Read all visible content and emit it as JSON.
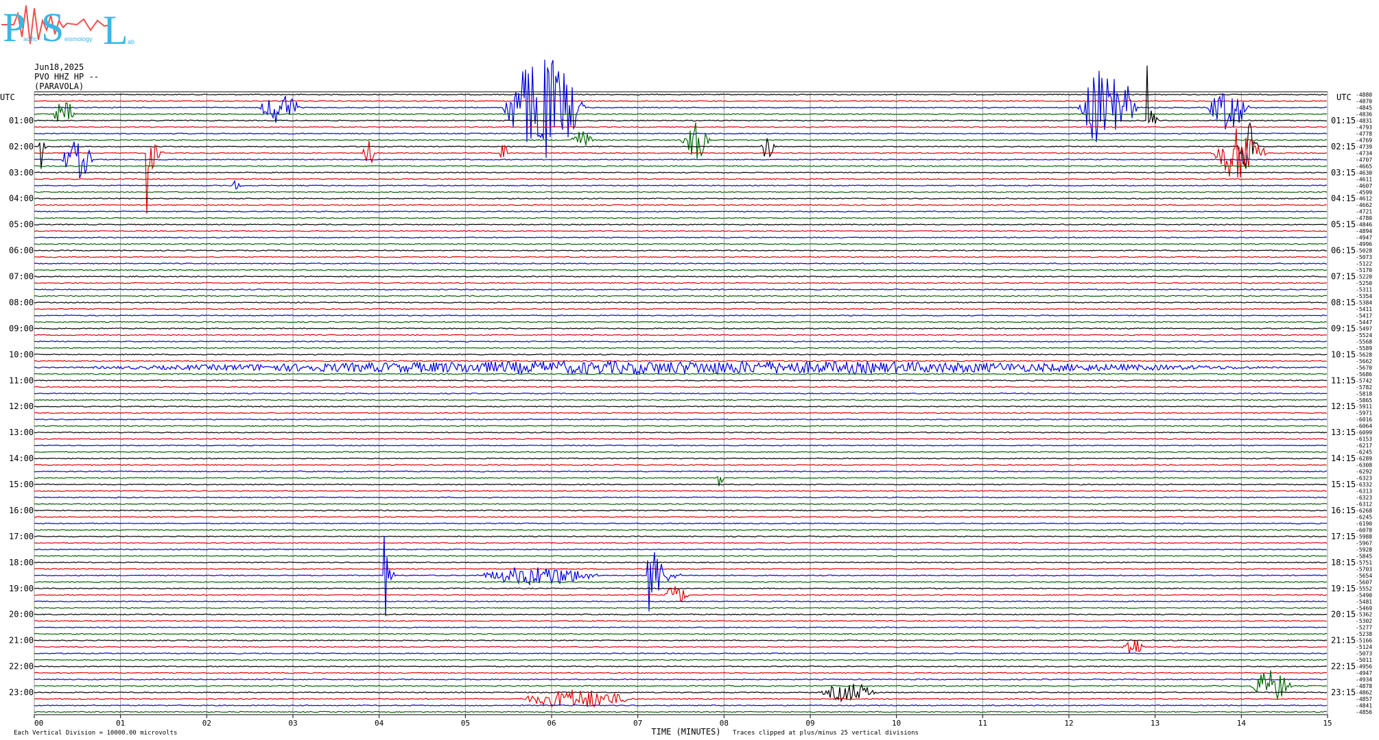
{
  "logo": {
    "big_letters": [
      "P",
      "S",
      "L"
    ],
    "small_words": [
      "acific",
      "eismology",
      "ab"
    ],
    "colors": {
      "letters": "#39b7e8",
      "wave": "#f0504d"
    }
  },
  "header": {
    "date": "Jun18,2025",
    "station": "PVO HHZ HP --",
    "name": "(PARAVOLA)"
  },
  "axis": {
    "left_header": "UTC",
    "right_header": "UTC",
    "left_labels": [
      "01:00",
      "02:00",
      "03:00",
      "04:00",
      "05:00",
      "06:00",
      "07:00",
      "08:00",
      "09:00",
      "10:00",
      "11:00",
      "12:00",
      "13:00",
      "14:00",
      "15:00",
      "16:00",
      "17:00",
      "18:00",
      "19:00",
      "20:00",
      "21:00",
      "22:00",
      "23:00"
    ],
    "right_labels": [
      "01:15",
      "02:15",
      "03:15",
      "04:15",
      "05:15",
      "06:15",
      "07:15",
      "08:15",
      "09:15",
      "10:15",
      "11:15",
      "12:15",
      "13:15",
      "14:15",
      "15:15",
      "16:15",
      "17:15",
      "18:15",
      "19:15",
      "20:15",
      "21:15",
      "22:15",
      "23:15"
    ],
    "x_ticks": [
      "00",
      "01",
      "02",
      "03",
      "04",
      "05",
      "06",
      "07",
      "08",
      "09",
      "10",
      "11",
      "12",
      "13",
      "14",
      "15"
    ],
    "xlabel": "TIME (MINUTES)"
  },
  "footer": {
    "left": "Each Vertical Division = 10000.00 microvolts",
    "right": "Traces clipped at plus/minus 25 vertical divisions"
  },
  "chart_data": {
    "type": "line",
    "title": "",
    "xlabel": "TIME (MINUTES)",
    "xlim": [
      0,
      15
    ],
    "trace_count": 96,
    "trace_colors": [
      "#000000",
      "#e00000",
      "#0000e0",
      "#006400"
    ],
    "grid": true,
    "offsets": [
      "-4880",
      "-4870",
      "-4845",
      "-4836",
      "-4831",
      "-4793",
      "-4778",
      "-4769",
      "-4739",
      "-4734",
      "-4707",
      "-4665",
      "-4630",
      "-4611",
      "-4607",
      "-4599",
      "-4612",
      "-4662",
      "-4721",
      "-4780",
      "-4846",
      "-4894",
      "-4947",
      "-4996",
      "-5028",
      "-5073",
      "-5122",
      "-5170",
      "-5220",
      "-5250",
      "-5311",
      "-5354",
      "-5384",
      "-5411",
      "-5417",
      "-5447",
      "-5497",
      "-5524",
      "-5568",
      "-5589",
      "-5628",
      "-5662",
      "-5670",
      "-5686",
      "-5742",
      "-5782",
      "-5818",
      "-5865",
      "-5911",
      "-5971",
      "-6016",
      "-6064",
      "-6099",
      "-6153",
      "-6217",
      "-6245",
      "-6289",
      "-6308",
      "-6292",
      "-6323",
      "-6332",
      "-6313",
      "-6323",
      "-6312",
      "-6268",
      "-6245",
      "-6190",
      "-6078",
      "-5988",
      "-5967",
      "-5928",
      "-5845",
      "-5751",
      "-5703",
      "-5654",
      "-5607",
      "-5552",
      "-5490",
      "-5481",
      "-5469",
      "-5362",
      "-5302",
      "-5277",
      "-5238",
      "-5166",
      "-5124",
      "-5073",
      "-5011",
      "-4956",
      "-4947",
      "-4934",
      "-4878",
      "-4862",
      "-4857",
      "-4841",
      "-4856"
    ],
    "events": [
      {
        "trace": 2,
        "start_min": 5.4,
        "end_min": 6.4,
        "amplitude_div": 16
      },
      {
        "trace": 2,
        "start_min": 2.6,
        "end_min": 3.1,
        "amplitude_div": 5
      },
      {
        "trace": 2,
        "start_min": 12.1,
        "end_min": 12.8,
        "amplitude_div": 14
      },
      {
        "trace": 2,
        "start_min": 13.6,
        "end_min": 14.1,
        "amplitude_div": 7
      },
      {
        "trace": 3,
        "start_min": 0.2,
        "end_min": 0.5,
        "amplitude_div": 4
      },
      {
        "trace": 4,
        "start_min": 12.9,
        "end_min": 13.05,
        "amplitude_div": 25
      },
      {
        "trace": 7,
        "start_min": 7.5,
        "end_min": 7.85,
        "amplitude_div": 6
      },
      {
        "trace": 7,
        "start_min": 6.2,
        "end_min": 6.5,
        "amplitude_div": 3
      },
      {
        "trace": 8,
        "start_min": 8.4,
        "end_min": 8.6,
        "amplitude_div": 4
      },
      {
        "trace": 8,
        "start_min": 13.95,
        "end_min": 14.2,
        "amplitude_div": 8
      },
      {
        "trace": 8,
        "start_min": 0.05,
        "end_min": 0.15,
        "amplitude_div": 25
      },
      {
        "trace": 9,
        "start_min": 1.3,
        "end_min": 1.5,
        "amplitude_div": 25
      },
      {
        "trace": 9,
        "start_min": 13.65,
        "end_min": 14.3,
        "amplitude_div": 9
      },
      {
        "trace": 9,
        "start_min": 3.8,
        "end_min": 3.95,
        "amplitude_div": 5
      },
      {
        "trace": 9,
        "start_min": 5.4,
        "end_min": 5.5,
        "amplitude_div": 5
      },
      {
        "trace": 10,
        "start_min": 0.3,
        "end_min": 0.7,
        "amplitude_div": 6
      },
      {
        "trace": 14,
        "start_min": 2.3,
        "end_min": 2.4,
        "amplitude_div": 3
      },
      {
        "trace": 42,
        "start_min": 0.0,
        "end_min": 15.0,
        "amplitude_div": 2
      },
      {
        "trace": 59,
        "start_min": 7.9,
        "end_min": 8.0,
        "amplitude_div": 3
      },
      {
        "trace": 74,
        "start_min": 4.05,
        "end_min": 4.2,
        "amplitude_div": 25
      },
      {
        "trace": 74,
        "start_min": 7.1,
        "end_min": 7.5,
        "amplitude_div": 25
      },
      {
        "trace": 74,
        "start_min": 5.1,
        "end_min": 6.6,
        "amplitude_div": 3
      },
      {
        "trace": 77,
        "start_min": 7.3,
        "end_min": 7.6,
        "amplitude_div": 3
      },
      {
        "trace": 85,
        "start_min": 12.6,
        "end_min": 12.9,
        "amplitude_div": 3
      },
      {
        "trace": 91,
        "start_min": 14.1,
        "end_min": 14.6,
        "amplitude_div": 5
      },
      {
        "trace": 92,
        "start_min": 9.1,
        "end_min": 9.8,
        "amplitude_div": 3
      },
      {
        "trace": 93,
        "start_min": 5.6,
        "end_min": 7.0,
        "amplitude_div": 3
      }
    ]
  }
}
